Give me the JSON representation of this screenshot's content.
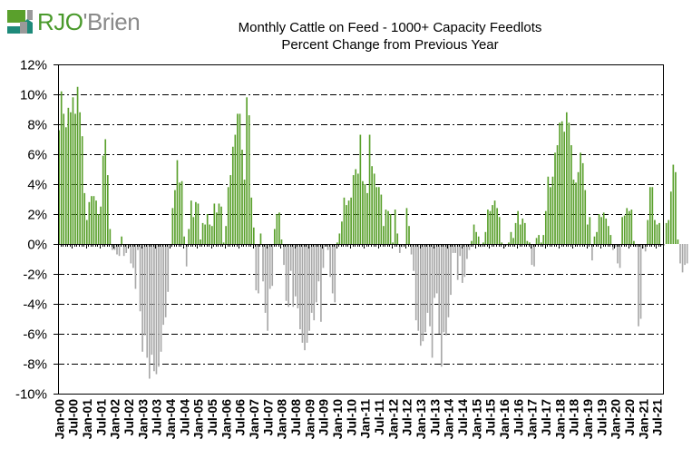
{
  "logo": {
    "text_part1": "RJO",
    "apostrophe": "'",
    "text_part2": "Brien",
    "colors": {
      "green": "#5aa02c",
      "teal": "#1e8a7a",
      "gray": "#9a9a9a"
    }
  },
  "chart_data": {
    "type": "bar",
    "title": "Monthly Cattle on Feed - 1000+ Capacity Feedlots",
    "subtitle": "Percent Change from Previous Year",
    "xlabel": "",
    "ylabel": "",
    "ylim": [
      -10,
      12
    ],
    "yticks": [
      12,
      10,
      8,
      6,
      4,
      2,
      0,
      -2,
      -4,
      -6,
      -8,
      -10
    ],
    "ytick_labels": [
      "12%",
      "10%",
      "8%",
      "6%",
      "4%",
      "2%",
      "0%",
      "-2%",
      "-4%",
      "-6%",
      "-8%",
      "-10%"
    ],
    "grid": "horizontal dashed",
    "positive_color": "#5aa02c",
    "negative_color": "#a8a8a8",
    "x_start": "Jan-00",
    "frequency": "monthly",
    "categories_labels": [
      "Jan-00",
      "Jul-00",
      "Jan-01",
      "Jul-01",
      "Jan-02",
      "Jul-02",
      "Jan-03",
      "Jul-03",
      "Jan-04",
      "Jul-04",
      "Jan-05",
      "Jul-05",
      "Jan-06",
      "Jul-06",
      "Jan-07",
      "Jul-07",
      "Jan-08",
      "Jul-08",
      "Jan-09",
      "Jul-09",
      "Jan-10",
      "Jul-10",
      "Jan-11",
      "Jul-11",
      "Jan-12",
      "Jul-12",
      "Jan-13",
      "Jul-13",
      "Jan-14",
      "Jul-14",
      "Jan-15",
      "Jul-15",
      "Jan-16",
      "Jul-16",
      "Jan-17",
      "Jul-17",
      "Jan-18",
      "Jul-18",
      "Jan-19",
      "Jul-19",
      "Jan-20",
      "Jul-20",
      "Jan-21",
      "Jul-21"
    ],
    "series": [
      {
        "name": "Percent Change from Previous Year",
        "values": [
          7.6,
          10.2,
          8.7,
          7.8,
          9.1,
          8.8,
          9.8,
          8.7,
          10.5,
          8.8,
          7.2,
          3.4,
          1.6,
          2.8,
          3.2,
          3.2,
          2.9,
          2.0,
          2.5,
          5.9,
          7.0,
          4.6,
          1.0,
          -0.4,
          -0.4,
          -0.7,
          -0.8,
          0.5,
          -0.8,
          -0.6,
          -0.2,
          -1.3,
          -1.6,
          -3.0,
          -0.4,
          -4.5,
          -7.2,
          -6.1,
          -7.6,
          -9.0,
          -7.4,
          -8.5,
          -8.7,
          -8.2,
          -7.2,
          -5.4,
          -4.9,
          -3.2,
          -0.2,
          2.4,
          3.6,
          5.6,
          4.1,
          4.2,
          0.5,
          -1.5,
          1.0,
          2.9,
          1.8,
          2.8,
          2.7,
          0.3,
          1.4,
          1.3,
          2.0,
          1.3,
          1.2,
          2.7,
          2.1,
          2.7,
          2.5,
          0.1,
          1.2,
          3.8,
          4.6,
          6.5,
          7.3,
          8.7,
          8.7,
          6.3,
          4.3,
          9.8,
          8.6,
          3.1,
          1.1,
          -3.1,
          -3.3,
          0.7,
          -2.5,
          -4.6,
          -5.8,
          -3.0,
          -2.8,
          1.0,
          2.0,
          2.1,
          0.3,
          -1.4,
          -3.8,
          -4.2,
          -1.8,
          -4.2,
          -3.5,
          -4.3,
          -5.7,
          -6.6,
          -7.1,
          -6.6,
          -5.8,
          -4.6,
          -5.1,
          -3.9,
          -2.5,
          -5.2,
          -1.6,
          -0.1,
          -0.4,
          -2.2,
          -3.3,
          -3.9,
          0.1,
          0.7,
          1.5,
          3.1,
          2.6,
          2.9,
          3.1,
          4.6,
          5.0,
          4.7,
          7.3,
          4.2,
          4.0,
          3.4,
          7.3,
          5.2,
          4.7,
          3.8,
          3.8,
          3.3,
          1.2,
          2.3,
          2.2,
          2.0,
          0.1,
          2.3,
          0.7,
          -0.6,
          -0.2,
          -0.1,
          2.4,
          1.2,
          -0.7,
          -1.8,
          -5.1,
          -5.8,
          -6.8,
          -6.5,
          -5.9,
          -4.6,
          -5.5,
          -7.6,
          -3.6,
          -3.3,
          -6.0,
          -8.2,
          -5.9,
          -6.1,
          -4.9,
          -3.4,
          -0.6,
          -0.6,
          -2.4,
          -0.8,
          -2.6,
          -2.2,
          -1.0,
          -0.4,
          0.2,
          1.3,
          0.8,
          0.5,
          -0.2,
          0.1,
          0.8,
          2.3,
          2.2,
          2.6,
          2.9,
          2.4,
          1.8,
          0.1,
          -0.3,
          -0.1,
          0.1,
          0.8,
          0.4,
          1.4,
          2.2,
          1.3,
          1.7,
          1.4,
          0.2,
          0.1,
          -1.4,
          -1.5,
          0.4,
          0.6,
          0.1,
          0.6,
          2.2,
          4.5,
          3.8,
          4.5,
          6.1,
          6.6,
          8.1,
          8.2,
          7.5,
          8.8,
          8.1,
          6.6,
          4.3,
          4.1,
          4.8,
          6.1,
          5.4,
          3.6,
          1.3,
          1.8,
          -1.1,
          0.5,
          0.8,
          2.0,
          1.8,
          2.1,
          1.7,
          1.2,
          0.6,
          -0.4,
          -0.2,
          -1.3,
          -1.6,
          1.8,
          1.9,
          2.4,
          2.2,
          2.3,
          0.2,
          -0.2,
          -5.5,
          -5.0,
          -0.3,
          -0.5,
          1.6,
          3.8,
          3.8,
          1.6,
          1.3,
          1.4,
          -0.1,
          -0.1,
          1.4,
          1.6,
          3.5,
          5.3,
          4.8,
          0.3,
          -1.3,
          -1.9,
          -1.4,
          -1.3
        ]
      }
    ]
  }
}
